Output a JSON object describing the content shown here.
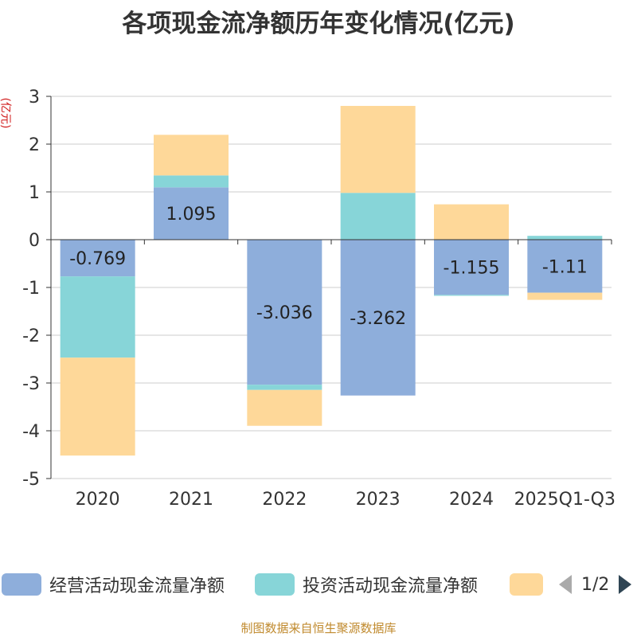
{
  "chart_data": {
    "type": "bar",
    "stacked": true,
    "title": "各项现金流净额历年变化情况(亿元)",
    "ylabel": "(亿元)",
    "xlabel": "",
    "ylim": [
      -5,
      3
    ],
    "yticks": [
      3,
      2,
      1,
      0,
      -1,
      -2,
      -3,
      -4,
      -5
    ],
    "grid": true,
    "categories": [
      "2020",
      "2021",
      "2022",
      "2023",
      "2024",
      "2025Q1-Q3"
    ],
    "series": [
      {
        "name": "经营活动现金流量净额",
        "color": "#8eaedb",
        "values": [
          -0.769,
          1.095,
          -3.036,
          -3.262,
          -1.155,
          -1.11
        ],
        "labels": [
          "-0.769",
          "1.095",
          "-3.036",
          "-3.262",
          "-1.155",
          "-1.11"
        ]
      },
      {
        "name": "投资活动现金流量净额",
        "color": "#87d5d8",
        "values": [
          -1.7,
          0.25,
          -0.11,
          0.98,
          -0.02,
          0.08
        ]
      },
      {
        "name": "",
        "color": "#fed899",
        "values": [
          -2.05,
          0.85,
          -0.75,
          1.82,
          0.74,
          -0.15
        ]
      }
    ],
    "legend_position": "bottom",
    "pager": "1/2"
  },
  "source_note": "制图数据来自恒生聚源数据库",
  "colors": {
    "axis": "#333333",
    "grid": "#cccccc",
    "title": "#333333",
    "unit": "#d11e1e",
    "source": "#c08a2e"
  }
}
